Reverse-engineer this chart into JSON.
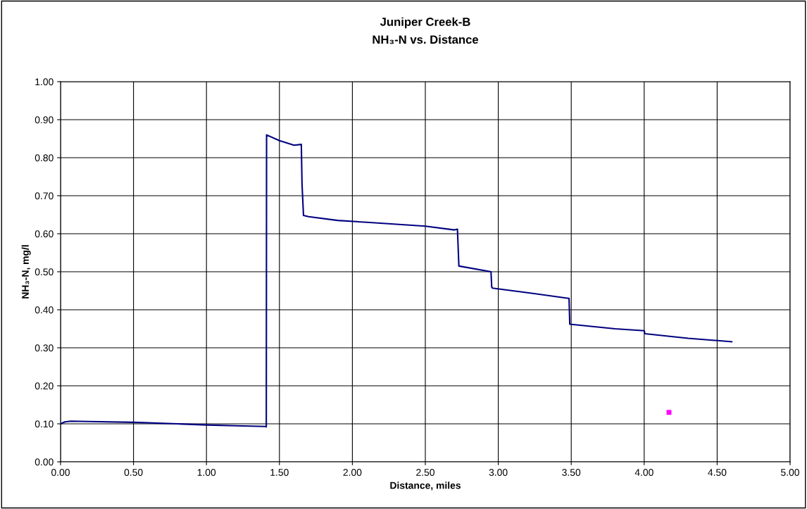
{
  "chart_data": {
    "type": "line",
    "title": "Juniper Creek-B\nNH₃-N vs. Distance",
    "xlabel": "Distance, miles",
    "ylabel": "NH₃-N, mg/l",
    "series": [
      {
        "color": "#000080",
        "marker": "none",
        "x": [
          0,
          0.03,
          0.07,
          0.2,
          0.5,
          0.8,
          1.0,
          1.2,
          1.4,
          1.41,
          1.412,
          1.5,
          1.6,
          1.65,
          1.655,
          1.665,
          1.7,
          1.9,
          2.1,
          2.5,
          2.7,
          2.72,
          2.73,
          2.95,
          2.955,
          2.96,
          3.2,
          3.48,
          3.485,
          3.49,
          3.8,
          4.0,
          4.005,
          4.3,
          4.6
        ],
        "values": [
          0.1,
          0.105,
          0.107,
          0.106,
          0.104,
          0.1,
          0.097,
          0.095,
          0.093,
          0.092,
          0.86,
          0.845,
          0.833,
          0.835,
          0.73,
          0.648,
          0.645,
          0.635,
          0.63,
          0.62,
          0.61,
          0.612,
          0.515,
          0.5,
          0.46,
          0.457,
          0.445,
          0.43,
          0.43,
          0.362,
          0.35,
          0.345,
          0.337,
          0.325,
          0.316
        ]
      },
      {
        "color": "#ff00ff",
        "type": "scatter",
        "marker": "square",
        "x": [
          4.17
        ],
        "values": [
          0.13
        ]
      }
    ],
    "xlim": [
      0,
      5
    ],
    "ylim": [
      0,
      1
    ],
    "xticks": [
      {
        "value": 0,
        "label": "0.00"
      },
      {
        "value": 0.5,
        "label": "0.50"
      },
      {
        "value": 1,
        "label": "1.00"
      },
      {
        "value": 1.5,
        "label": "1.50"
      },
      {
        "value": 2,
        "label": "2.00"
      },
      {
        "value": 2.5,
        "label": "2.50"
      },
      {
        "value": 3,
        "label": "3.00"
      },
      {
        "value": 3.5,
        "label": "3.50"
      },
      {
        "value": 4,
        "label": "4.00"
      },
      {
        "value": 4.5,
        "label": "4.50"
      },
      {
        "value": 5,
        "label": "5.00"
      }
    ],
    "yticks": [
      {
        "value": 0,
        "label": "0.00"
      },
      {
        "value": 0.1,
        "label": "0.10"
      },
      {
        "value": 0.2,
        "label": "0.20"
      },
      {
        "value": 0.3,
        "label": "0.30"
      },
      {
        "value": 0.4,
        "label": "0.40"
      },
      {
        "value": 0.5,
        "label": "0.50"
      },
      {
        "value": 0.6,
        "label": "0.60"
      },
      {
        "value": 0.7,
        "label": "0.70"
      },
      {
        "value": 0.8,
        "label": "0.80"
      },
      {
        "value": 0.9,
        "label": "0.90"
      },
      {
        "value": 1,
        "label": "1.00"
      }
    ],
    "grid": true
  }
}
